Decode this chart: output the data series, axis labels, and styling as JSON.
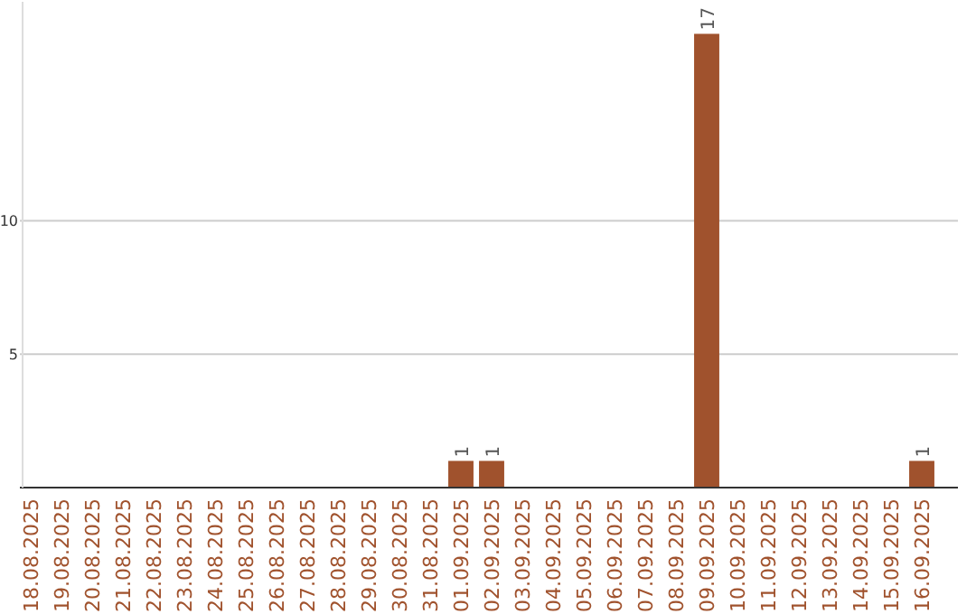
{
  "chart_data": {
    "type": "bar",
    "categories": [
      "18.08.2025",
      "19.08.2025",
      "20.08.2025",
      "21.08.2025",
      "22.08.2025",
      "23.08.2025",
      "24.08.2025",
      "25.08.2025",
      "26.08.2025",
      "27.08.2025",
      "28.08.2025",
      "29.08.2025",
      "30.08.2025",
      "31.08.2025",
      "01.09.2025",
      "02.09.2025",
      "03.09.2025",
      "04.09.2025",
      "05.09.2025",
      "06.09.2025",
      "07.09.2025",
      "08.09.2025",
      "09.09.2025",
      "10.09.2025",
      "11.09.2025",
      "12.09.2025",
      "13.09.2025",
      "14.09.2025",
      "15.09.2025",
      "16.09.2025"
    ],
    "values": [
      0,
      0,
      0,
      0,
      0,
      0,
      0,
      0,
      0,
      0,
      0,
      0,
      0,
      0,
      1,
      1,
      0,
      0,
      0,
      0,
      0,
      0,
      17,
      0,
      0,
      0,
      0,
      0,
      0,
      1
    ],
    "value_labels": [
      null,
      null,
      null,
      null,
      null,
      null,
      null,
      null,
      null,
      null,
      null,
      null,
      null,
      null,
      "1",
      "1",
      null,
      null,
      null,
      null,
      null,
      null,
      "17",
      null,
      null,
      null,
      null,
      null,
      null,
      "1"
    ],
    "color": "#a0522d",
    "ylim": [
      0,
      18.2
    ],
    "yticks": [
      5,
      10
    ],
    "grid": "y"
  }
}
